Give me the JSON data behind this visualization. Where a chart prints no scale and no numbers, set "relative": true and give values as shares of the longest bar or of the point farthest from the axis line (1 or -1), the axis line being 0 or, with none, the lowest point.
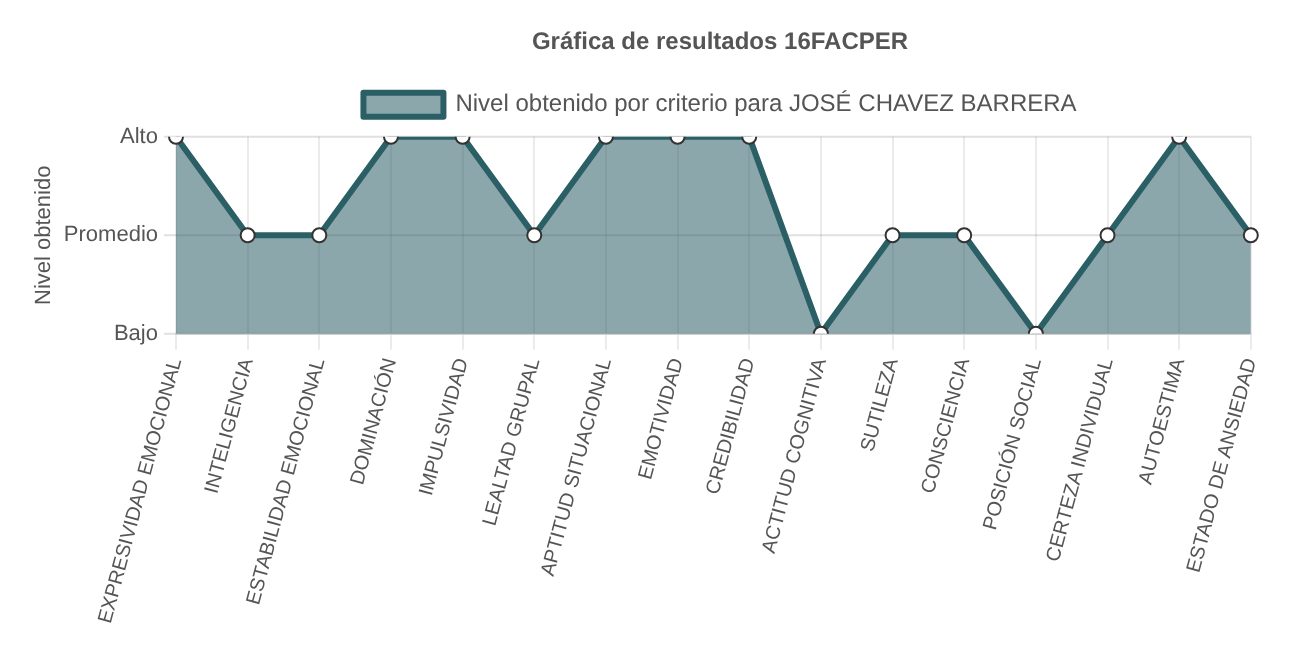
{
  "chart_data": {
    "type": "area",
    "title": "Gráfica de resultados 16FACPER",
    "ylabel": "Nivel obtenido",
    "categories": [
      "EXPRESIVIDAD EMOCIONAL",
      "INTELIGENCIA",
      "ESTABILIDAD EMOCIONAL",
      "DOMINACIÓN",
      "IMPULSIVIDAD",
      "LEALTAD GRUPAL",
      "APTITUD SITUACIONAL",
      "EMOTIVIDAD",
      "CREDIBILIDAD",
      "ACTITUD COGNITIVA",
      "SUTILEZA",
      "CONSCIENCIA",
      "POSICIÓN SOCIAL",
      "CERTEZA INDIVIDUAL",
      "AUTOESTIMA",
      "ESTADO DE ANSIEDAD"
    ],
    "series": [
      {
        "name": "Nivel obtenido por criterio para JOSÉ CHAVEZ BARRERA",
        "color": "#2b5f66",
        "values": [
          1,
          0.5,
          0.5,
          1,
          1,
          0.5,
          1,
          1,
          1,
          0,
          0.5,
          0.5,
          0,
          0.5,
          1,
          0.5
        ]
      }
    ],
    "relative": true,
    "annotations": [
      "Bajo",
      "Promedio",
      "Alto"
    ],
    "grid": true,
    "legend": "top",
    "marker": "circle",
    "line_style": "solid"
  }
}
